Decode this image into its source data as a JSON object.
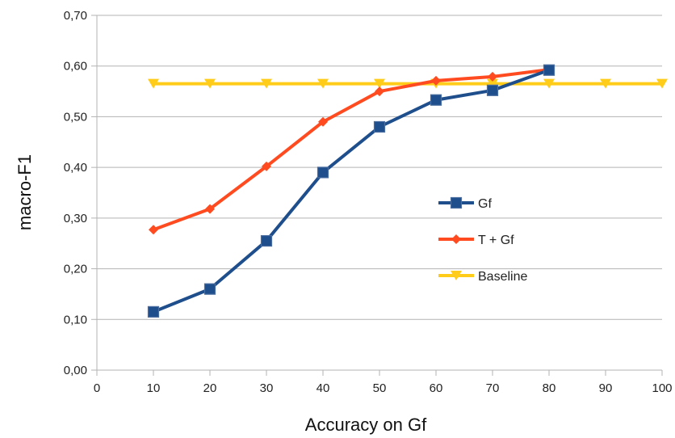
{
  "chart_data": {
    "type": "line",
    "title": "",
    "xlabel": "Accuracy on Gf",
    "ylabel": "macro-F1",
    "xlim": [
      0,
      100
    ],
    "ylim": [
      0,
      0.7
    ],
    "x_ticks": [
      "0",
      "10",
      "20",
      "30",
      "40",
      "50",
      "60",
      "70",
      "80",
      "90",
      "100"
    ],
    "y_ticks": [
      "0,00",
      "0,10",
      "0,20",
      "0,30",
      "0,40",
      "0,50",
      "0,60",
      "0,70"
    ],
    "grid": true,
    "legend_position": "right",
    "series": [
      {
        "name": "Gf",
        "color": "#1f4e8c",
        "marker": "square",
        "x": [
          10,
          20,
          30,
          40,
          50,
          60,
          70,
          80
        ],
        "y": [
          0.115,
          0.16,
          0.255,
          0.39,
          0.48,
          0.533,
          0.552,
          0.592
        ]
      },
      {
        "name": "T + Gf",
        "color": "#ff4b1f",
        "marker": "diamond",
        "x": [
          10,
          20,
          30,
          40,
          50,
          60,
          70,
          80
        ],
        "y": [
          0.277,
          0.318,
          0.402,
          0.49,
          0.55,
          0.571,
          0.579,
          0.593
        ]
      },
      {
        "name": "Baseline",
        "color": "#ffcc1a",
        "marker": "triangle-down",
        "x": [
          10,
          20,
          30,
          40,
          50,
          60,
          70,
          80,
          90,
          100
        ],
        "y": [
          0.565,
          0.565,
          0.565,
          0.565,
          0.565,
          0.565,
          0.565,
          0.565,
          0.565,
          0.565
        ]
      }
    ]
  }
}
